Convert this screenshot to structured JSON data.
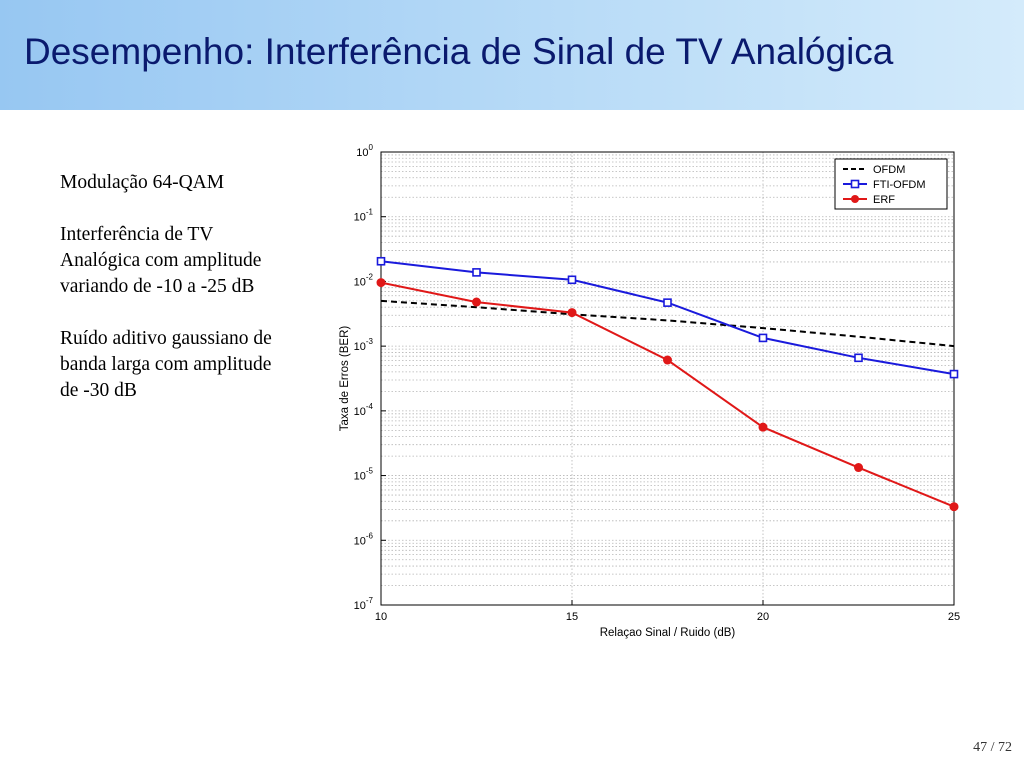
{
  "slide": {
    "title": "Desempenho: Interferência de Sinal de TV Analógica",
    "bullets": [
      "Modulação 64-QAM",
      "Interferência de TV Analógica com amplitude variando de -10 a -25 dB",
      "Ruído aditivo gaussiano de banda larga com amplitude de -30 dB"
    ],
    "page_number": "47 / 72"
  },
  "chart_data": {
    "type": "line",
    "title": "",
    "xlabel": "Relaçao Sinal / Ruido (dB)",
    "ylabel": "Taxa de Erros (BER)",
    "xlim": [
      10,
      25
    ],
    "ylim": [
      1e-07,
      1
    ],
    "yscale": "log",
    "grid": true,
    "legend_position": "top-right",
    "x_ticks": [
      "10",
      "15",
      "20",
      "25"
    ],
    "y_ticks": [
      {
        "base": "10",
        "exp": "0"
      },
      {
        "base": "10",
        "exp": "-1"
      },
      {
        "base": "10",
        "exp": "-2"
      },
      {
        "base": "10",
        "exp": "-3"
      },
      {
        "base": "10",
        "exp": "-4"
      },
      {
        "base": "10",
        "exp": "-5"
      },
      {
        "base": "10",
        "exp": "-6"
      },
      {
        "base": "10",
        "exp": "-7"
      }
    ],
    "series": [
      {
        "name": "OFDM",
        "color": "#000000",
        "style": "dashed",
        "marker": "none",
        "x": [
          10,
          12.5,
          15,
          17.5,
          20,
          22.5,
          25
        ],
        "y": [
          0.005,
          0.004,
          0.0031,
          0.0025,
          0.0019,
          0.0014,
          0.001
        ]
      },
      {
        "name": "FTI-OFDM",
        "color": "#1a1adc",
        "style": "solid",
        "marker": "square",
        "x": [
          10,
          12.5,
          15,
          17.5,
          20,
          22.5,
          25
        ],
        "y": [
          0.0205,
          0.0138,
          0.0106,
          0.0047,
          0.00134,
          0.00066,
          0.00037
        ]
      },
      {
        "name": "ERF",
        "color": "#e01818",
        "style": "solid",
        "marker": "circle",
        "x": [
          10,
          12.5,
          15,
          17.5,
          20,
          22.5,
          25
        ],
        "y": [
          0.0096,
          0.0048,
          0.0033,
          0.00061,
          5.6e-05,
          1.33e-05,
          3.3e-06
        ]
      }
    ]
  }
}
